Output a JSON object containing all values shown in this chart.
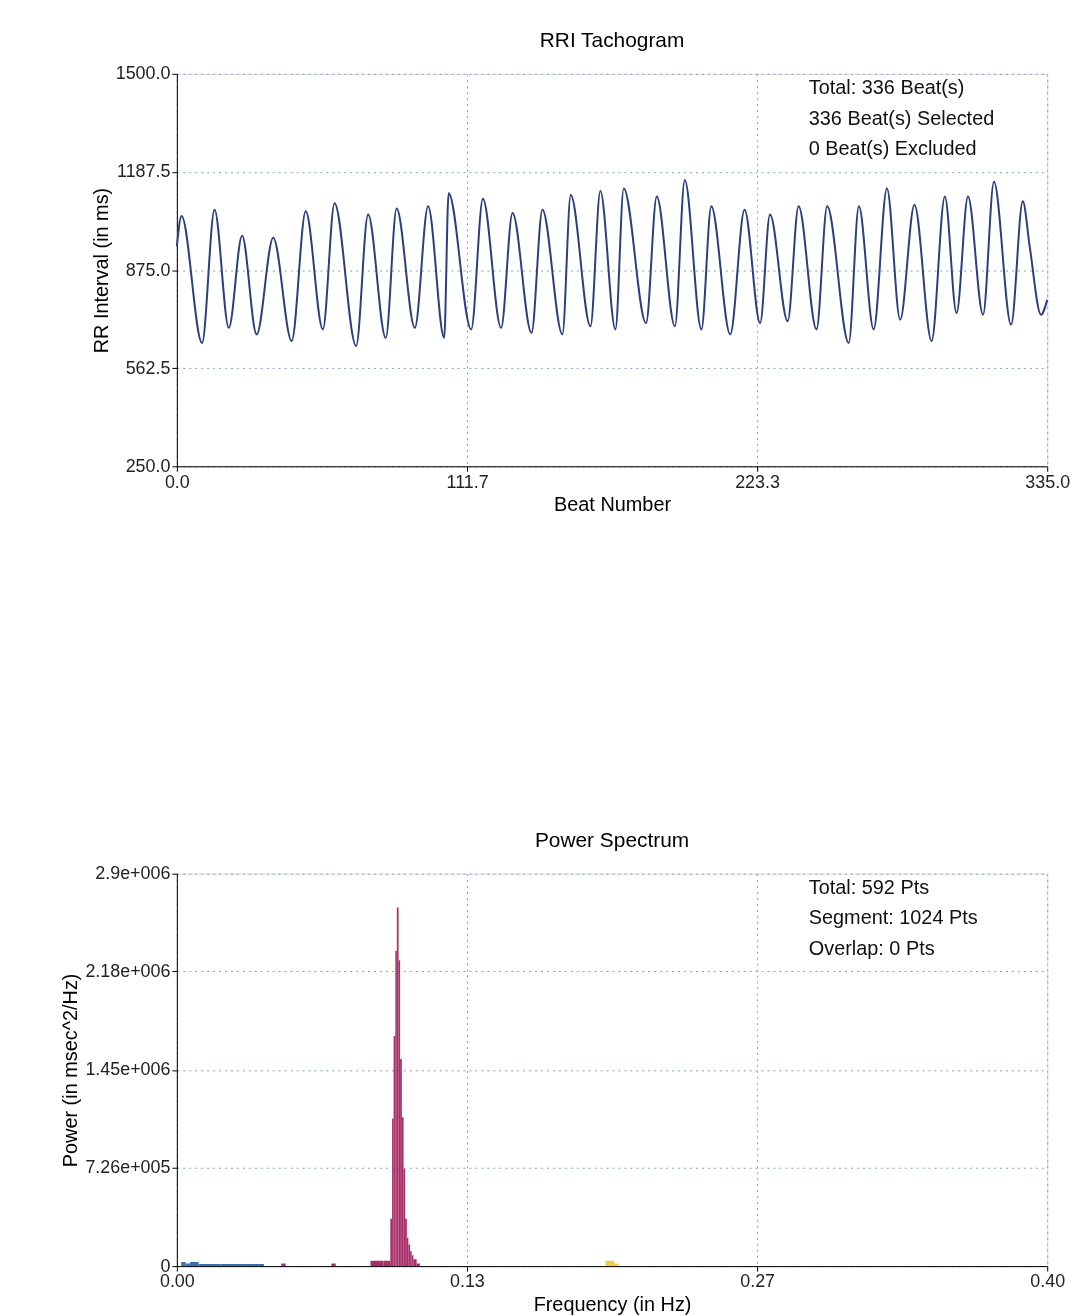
{
  "chart_data": [
    {
      "type": "line",
      "title": "RRI Tachogram",
      "xlabel": "Beat Number",
      "ylabel": "RR Interval (in ms)",
      "xlim": [
        0,
        335
      ],
      "ylim": [
        250,
        1500
      ],
      "xticks": [
        {
          "value": 0,
          "label": "0.0"
        },
        111.7,
        223.3,
        {
          "value": 335,
          "label": "335.0"
        }
      ],
      "yticks": [
        {
          "value": 250,
          "label": "250.0"
        },
        562.5,
        {
          "value": 875,
          "label": "875.0"
        },
        1187.5,
        {
          "value": 1500,
          "label": "1500.0"
        }
      ],
      "grid": true,
      "annotations": [
        "Total: 336 Beat(s)",
        "336 Beat(s) Selected",
        "0 Beat(s) Excluded"
      ],
      "series": [
        {
          "color": "#2b3f7f",
          "x": [
            0,
            1.8,
            9.7,
            14.5,
            20.0,
            25.1,
            30.7,
            37.1,
            44.2,
            49.6,
            56.2,
            60.7,
            69.0,
            73.6,
            80.4,
            84.6,
            91.6,
            96.7,
            102.9,
            104.6,
            113.3,
            117.8,
            124.8,
            129.2,
            136.5,
            140.7,
            148.4,
            151.6,
            159.2,
            163.0,
            168.8,
            172.0,
            180.6,
            184.7,
            191.7,
            195.5,
            201.9,
            205.7,
            213.0,
            218.5,
            224.5,
            228.3,
            235.1,
            239.3,
            246.2,
            250.3,
            258.6,
            262.5,
            268.2,
            273.3,
            278.4,
            283.9,
            290.5,
            295.6,
            300.1,
            304.5,
            310.3,
            314.5,
            321.1,
            325.6,
            328.3,
            332.6,
            335
          ],
          "values": [
            950,
            1047,
            643,
            1067,
            691,
            984,
            670,
            978,
            649,
            1062,
            686,
            1088,
            633,
            1052,
            659,
            1071,
            691,
            1078,
            659,
            1120,
            686,
            1102,
            691,
            1057,
            675,
            1067,
            670,
            1114,
            696,
            1127,
            686,
            1135,
            706,
            1109,
            696,
            1162,
            686,
            1078,
            670,
            1067,
            706,
            1052,
            712,
            1078,
            686,
            1078,
            643,
            1078,
            686,
            1135,
            717,
            1083,
            649,
            1109,
            738,
            1109,
            733,
            1156,
            701,
            1094,
            947,
            733,
            780
          ]
        }
      ]
    },
    {
      "type": "area",
      "title": "Power Spectrum",
      "xlabel": "Frequency (in Hz)",
      "ylabel": "Power (in msec^2/Hz)",
      "xlim": [
        0,
        0.4
      ],
      "ylim": [
        0,
        2900000
      ],
      "xticks": [
        {
          "value": 0,
          "label": "0.00"
        },
        {
          "value": 0.1333,
          "label": "0.13"
        },
        {
          "value": 0.2667,
          "label": "0.27"
        },
        {
          "value": 0.4,
          "label": "0.40"
        }
      ],
      "yticks": [
        0,
        {
          "value": 726000,
          "label": "7.26e+005"
        },
        {
          "value": 1450000,
          "label": "1.45e+006"
        },
        {
          "value": 2180000,
          "label": "2.18e+006"
        },
        {
          "value": 2900000,
          "label": "2.9e+006"
        }
      ],
      "grid": true,
      "annotations": [
        "Total: 592 Pts",
        "Segment: 1024 Pts",
        "Overlap: 0 Pts"
      ],
      "series": [
        {
          "color": "#3a6fb0",
          "x": [
            0,
            0.002,
            0.004,
            0.006,
            0.01,
            0.02,
            0.03,
            0.04
          ],
          "values": [
            0,
            30000,
            20000,
            30000,
            15000,
            15000,
            15000,
            0
          ]
        },
        {
          "color": "#a8306a",
          "x": [
            0.04,
            0.048,
            0.05,
            0.07,
            0.071,
            0.073,
            0.088,
            0.089,
            0.095,
            0.0981,
            0.0989,
            0.0996,
            0.1004,
            0.1011,
            0.1019,
            0.1026,
            0.1034,
            0.1042,
            0.1049,
            0.1057,
            0.1064,
            0.1072,
            0.1079,
            0.1087,
            0.1102,
            0.1117,
            0.15
          ],
          "values": [
            0,
            20000,
            0,
            0,
            20000,
            0,
            0,
            40000,
            40000,
            350000,
            1090000,
            1700000,
            2330000,
            2650000,
            2260000,
            1530000,
            1100000,
            720000,
            350000,
            210000,
            160000,
            110000,
            80000,
            50000,
            20000,
            0,
            0
          ]
        },
        {
          "color": "#f0d040",
          "x": [
            0.15,
            0.195,
            0.197,
            0.201,
            0.203
          ],
          "values": [
            0,
            0,
            40000,
            20000,
            0
          ]
        }
      ]
    }
  ]
}
